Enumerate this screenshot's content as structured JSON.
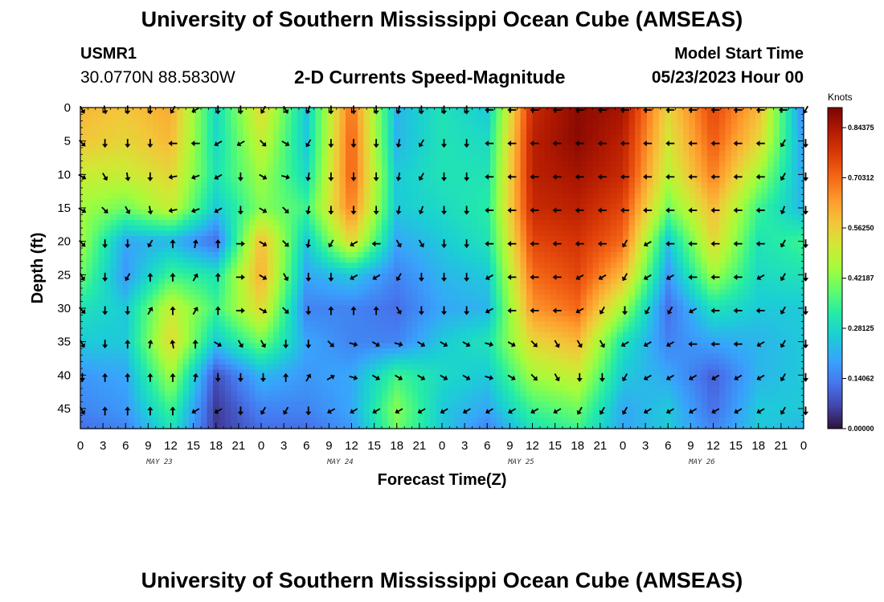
{
  "header": {
    "title": "University of Southern Mississippi Ocean Cube (AMSEAS)",
    "station_id": "USMR1",
    "coordinates": "30.0770N  88.5830W",
    "plot_title": "2-D Currents Speed-Magnitude",
    "model_start_label": "Model Start Time",
    "model_start_value": "05/23/2023 Hour 00"
  },
  "footer": {
    "title": "University of Southern Mississippi Ocean Cube (AMSEAS)"
  },
  "chart_data": {
    "type": "heatmap",
    "title": "2-D Currents Speed-Magnitude",
    "xlabel": "Forecast Time(Z)",
    "ylabel": "Depth (ft)",
    "x_ticks": [
      "0",
      "3",
      "6",
      "9",
      "12",
      "15",
      "18",
      "21",
      "0",
      "3",
      "6",
      "9",
      "12",
      "15",
      "18",
      "21",
      "0",
      "3",
      "6",
      "9",
      "12",
      "15",
      "18",
      "21",
      "0",
      "3",
      "6",
      "9",
      "12",
      "15",
      "18",
      "21",
      "0"
    ],
    "x_range_hours": [
      0,
      96
    ],
    "date_labels": [
      {
        "text": "MAY 23",
        "hour": 10.5
      },
      {
        "text": "MAY 24",
        "hour": 34.5
      },
      {
        "text": "MAY 25",
        "hour": 58.5
      },
      {
        "text": "MAY 26",
        "hour": 82.5
      }
    ],
    "y_ticks": [
      "0",
      "5",
      "10",
      "15",
      "20",
      "25",
      "30",
      "35",
      "40",
      "45"
    ],
    "y_range_ft": [
      0,
      48
    ],
    "colorbar": {
      "unit": "Knots",
      "range": [
        0,
        0.9
      ],
      "labels": [
        "0.84375",
        "0.70312",
        "0.56250",
        "0.42187",
        "0.28125",
        "0.14062",
        "0.00000"
      ],
      "label_values": [
        0.84375,
        0.703125,
        0.5625,
        0.421875,
        0.28125,
        0.140625,
        0.0
      ]
    },
    "speed_grid": {
      "hours": [
        0,
        6,
        12,
        18,
        24,
        30,
        36,
        42,
        48,
        54,
        60,
        66,
        72,
        78,
        84,
        90,
        96
      ],
      "depths_ft": [
        0,
        5,
        10,
        15,
        20,
        25,
        30,
        35,
        40,
        45,
        48
      ],
      "values": [
        [
          0.6,
          0.58,
          0.62,
          0.28,
          0.55,
          0.25,
          0.7,
          0.22,
          0.3,
          0.25,
          0.8,
          0.88,
          0.85,
          0.55,
          0.75,
          0.6,
          0.15
        ],
        [
          0.58,
          0.55,
          0.6,
          0.28,
          0.5,
          0.25,
          0.72,
          0.22,
          0.3,
          0.28,
          0.82,
          0.88,
          0.82,
          0.52,
          0.72,
          0.55,
          0.18
        ],
        [
          0.5,
          0.5,
          0.55,
          0.3,
          0.45,
          0.28,
          0.72,
          0.25,
          0.3,
          0.3,
          0.82,
          0.85,
          0.8,
          0.48,
          0.68,
          0.45,
          0.2
        ],
        [
          0.45,
          0.4,
          0.5,
          0.25,
          0.42,
          0.35,
          0.68,
          0.25,
          0.28,
          0.32,
          0.8,
          0.82,
          0.75,
          0.4,
          0.6,
          0.35,
          0.22
        ],
        [
          0.45,
          0.2,
          0.22,
          0.12,
          0.6,
          0.25,
          0.55,
          0.2,
          0.25,
          0.3,
          0.75,
          0.78,
          0.7,
          0.25,
          0.55,
          0.3,
          0.35
        ],
        [
          0.4,
          0.18,
          0.35,
          0.3,
          0.62,
          0.2,
          0.25,
          0.15,
          0.22,
          0.25,
          0.7,
          0.75,
          0.6,
          0.18,
          0.45,
          0.28,
          0.3
        ],
        [
          0.3,
          0.25,
          0.5,
          0.35,
          0.55,
          0.15,
          0.15,
          0.12,
          0.2,
          0.22,
          0.65,
          0.7,
          0.45,
          0.12,
          0.3,
          0.25,
          0.25
        ],
        [
          0.25,
          0.25,
          0.55,
          0.25,
          0.4,
          0.2,
          0.15,
          0.15,
          0.25,
          0.3,
          0.55,
          0.6,
          0.3,
          0.15,
          0.2,
          0.22,
          0.25
        ],
        [
          0.18,
          0.2,
          0.45,
          0.08,
          0.22,
          0.18,
          0.2,
          0.35,
          0.28,
          0.25,
          0.45,
          0.5,
          0.25,
          0.2,
          0.1,
          0.22,
          0.25
        ],
        [
          0.15,
          0.18,
          0.35,
          0.05,
          0.15,
          0.15,
          0.2,
          0.42,
          0.25,
          0.2,
          0.35,
          0.4,
          0.2,
          0.25,
          0.12,
          0.25,
          0.25
        ],
        [
          0.12,
          0.15,
          0.3,
          0.05,
          0.12,
          0.12,
          0.18,
          0.4,
          0.25,
          0.15,
          0.3,
          0.35,
          0.2,
          0.25,
          0.15,
          0.25,
          0.22
        ]
      ]
    },
    "current_direction_grid": {
      "note": "Arrow direction angle in degrees (0 = east, 90 = north/up, -90 = south/down), sampled every 3 h at each labeled depth",
      "hours": [
        0,
        3,
        6,
        9,
        12,
        15,
        18,
        21,
        24,
        27,
        30,
        33,
        36,
        39,
        42,
        45,
        48,
        51,
        54,
        57,
        60,
        63,
        66,
        69,
        72,
        75,
        78,
        81,
        84,
        87,
        90,
        93,
        96
      ],
      "depths_ft": [
        0,
        5,
        10,
        15,
        20,
        25,
        30,
        35,
        40,
        45
      ],
      "angles_deg": [
        [
          -60,
          -80,
          -90,
          -90,
          -120,
          -150,
          -90,
          -90,
          -120,
          -60,
          -110,
          -90,
          -90,
          -90,
          -100,
          -90,
          -90,
          -90,
          -180,
          -180,
          -180,
          -180,
          -180,
          -180,
          -180,
          -180,
          -180,
          -180,
          -180,
          -180,
          -180,
          -180,
          -120
        ],
        [
          -45,
          -90,
          -90,
          -90,
          -180,
          -180,
          -150,
          -150,
          -45,
          -30,
          -120,
          -90,
          -90,
          -90,
          -100,
          -120,
          -90,
          -90,
          -180,
          -180,
          -180,
          -180,
          -180,
          -180,
          -180,
          -180,
          -180,
          -180,
          -180,
          -180,
          -180,
          -120,
          -90
        ],
        [
          -30,
          -60,
          -80,
          -90,
          -170,
          -160,
          -150,
          -90,
          -30,
          -15,
          -100,
          -90,
          -90,
          -90,
          -100,
          -120,
          -90,
          -90,
          -180,
          -180,
          -180,
          -180,
          -180,
          -180,
          -180,
          -180,
          -180,
          -180,
          -180,
          -180,
          -180,
          -120,
          -90
        ],
        [
          -30,
          -45,
          -60,
          -80,
          -170,
          -160,
          -150,
          -90,
          -30,
          -45,
          -100,
          -90,
          -90,
          -90,
          -100,
          -110,
          -90,
          -90,
          -180,
          -180,
          -180,
          -180,
          -180,
          -180,
          -180,
          -180,
          -180,
          -180,
          -180,
          -180,
          -180,
          -110,
          -90
        ],
        [
          -45,
          -90,
          -90,
          -120,
          90,
          80,
          90,
          0,
          -30,
          -45,
          -100,
          -120,
          -150,
          -180,
          -60,
          -60,
          -90,
          -90,
          -180,
          -180,
          -180,
          -180,
          -180,
          -180,
          -120,
          -150,
          -180,
          -180,
          -180,
          -180,
          -180,
          -120,
          -90
        ],
        [
          -60,
          -90,
          -120,
          90,
          90,
          60,
          90,
          0,
          -30,
          -60,
          -90,
          -90,
          -150,
          -150,
          -120,
          -90,
          -90,
          -90,
          -150,
          -180,
          -180,
          -180,
          -150,
          -150,
          -120,
          -150,
          -150,
          -180,
          -180,
          -180,
          -150,
          -120,
          -90
        ],
        [
          -45,
          -90,
          -90,
          60,
          90,
          60,
          90,
          0,
          -30,
          -45,
          -90,
          90,
          90,
          90,
          -60,
          -90,
          -90,
          -90,
          -150,
          -180,
          -180,
          -180,
          -150,
          -120,
          -90,
          -120,
          -120,
          -150,
          -180,
          -180,
          -180,
          -120,
          -90
        ],
        [
          -60,
          -90,
          90,
          80,
          100,
          90,
          -30,
          -60,
          -60,
          -90,
          -90,
          -45,
          -15,
          -30,
          -15,
          -30,
          -30,
          -30,
          -15,
          -30,
          -45,
          -60,
          -60,
          -60,
          -150,
          -150,
          -150,
          -180,
          -180,
          -180,
          -150,
          -120,
          -90
        ],
        [
          -90,
          90,
          90,
          90,
          90,
          80,
          -90,
          -90,
          -90,
          90,
          60,
          30,
          -15,
          -30,
          -30,
          -30,
          -30,
          -30,
          -15,
          -30,
          -45,
          -60,
          -90,
          -90,
          -120,
          -150,
          -150,
          -150,
          -150,
          -150,
          -150,
          -120,
          -90
        ],
        [
          -60,
          90,
          90,
          90,
          90,
          -150,
          -150,
          -90,
          -120,
          -120,
          -90,
          -150,
          -150,
          -150,
          -150,
          -150,
          -150,
          -150,
          -150,
          -150,
          -150,
          -150,
          -120,
          -120,
          -120,
          -150,
          -150,
          -150,
          -150,
          -150,
          -150,
          -120,
          -90
        ]
      ]
    }
  }
}
